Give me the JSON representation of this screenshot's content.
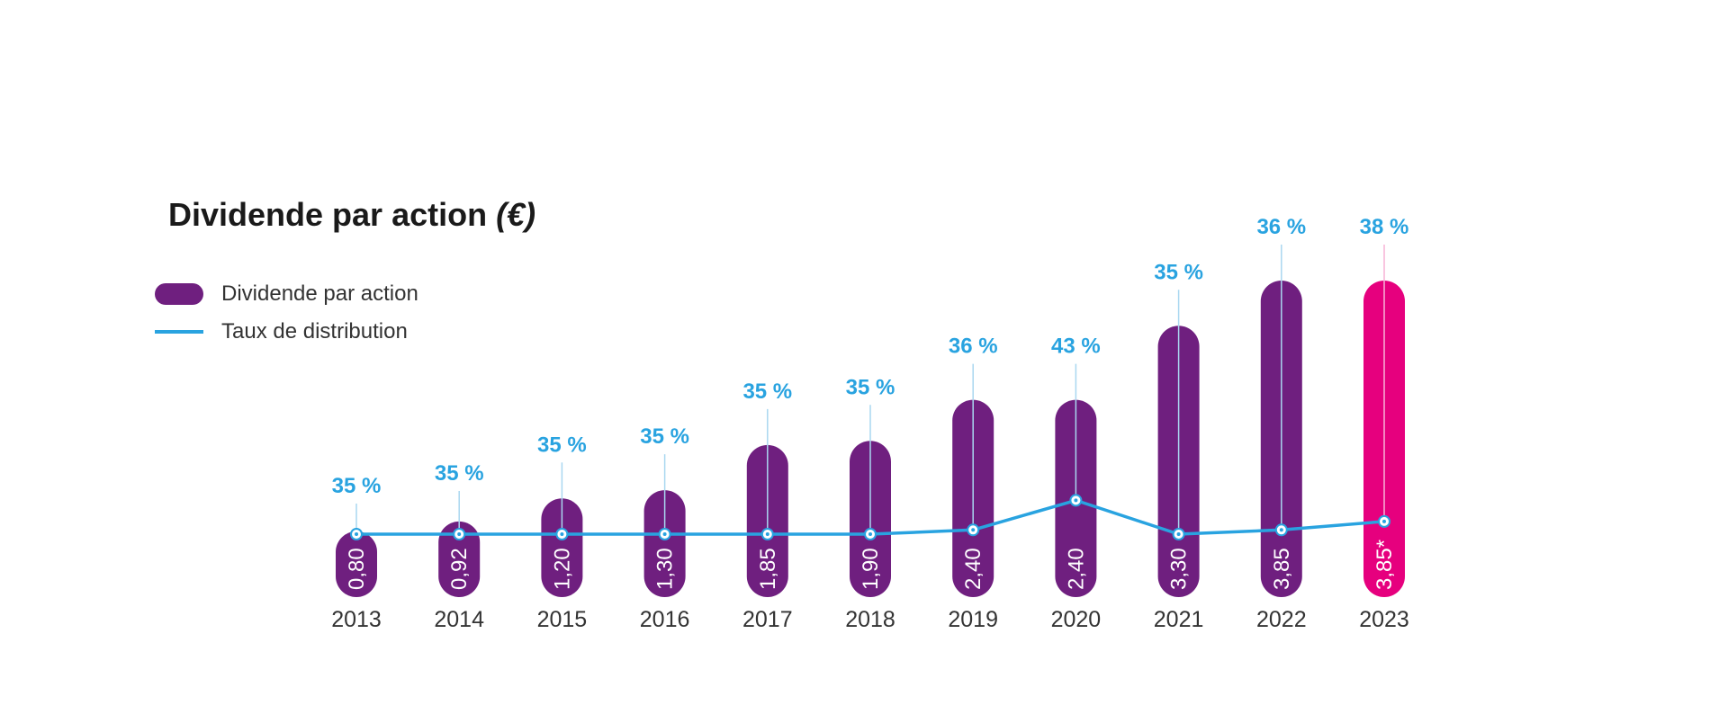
{
  "chart_data": {
    "type": "bar",
    "title": "Dividende par action",
    "title_unit": "(€)",
    "categories": [
      "2013",
      "2014",
      "2015",
      "2016",
      "2017",
      "2018",
      "2019",
      "2020",
      "2021",
      "2022",
      "2023"
    ],
    "series": [
      {
        "name": "Dividende par action",
        "type": "bar",
        "values": [
          0.8,
          0.92,
          1.2,
          1.3,
          1.85,
          1.9,
          2.4,
          2.4,
          3.3,
          3.85,
          3.85
        ],
        "labels": [
          "0,80",
          "0,92",
          "1,20",
          "1,30",
          "1,85",
          "1,90",
          "2,40",
          "2,40",
          "3,30",
          "3,85",
          "3,85*"
        ]
      },
      {
        "name": "Taux de distribution",
        "type": "line",
        "values": [
          35,
          35,
          35,
          35,
          35,
          35,
          36,
          43,
          35,
          36,
          38
        ],
        "labels": [
          "35 %",
          "35 %",
          "35 %",
          "35 %",
          "35 %",
          "35 %",
          "36 %",
          "43 %",
          "35 %",
          "36 %",
          "38 %"
        ]
      }
    ],
    "legend": "top-left",
    "grid": false,
    "highlight_category": "2023"
  },
  "colors": {
    "bar": "#6f1f7f",
    "bar_highlight": "#e6007e",
    "line": "#29a3e0",
    "percent_label": "#29a3e0",
    "category_label": "#333333",
    "bar_label": "#ffffff"
  }
}
